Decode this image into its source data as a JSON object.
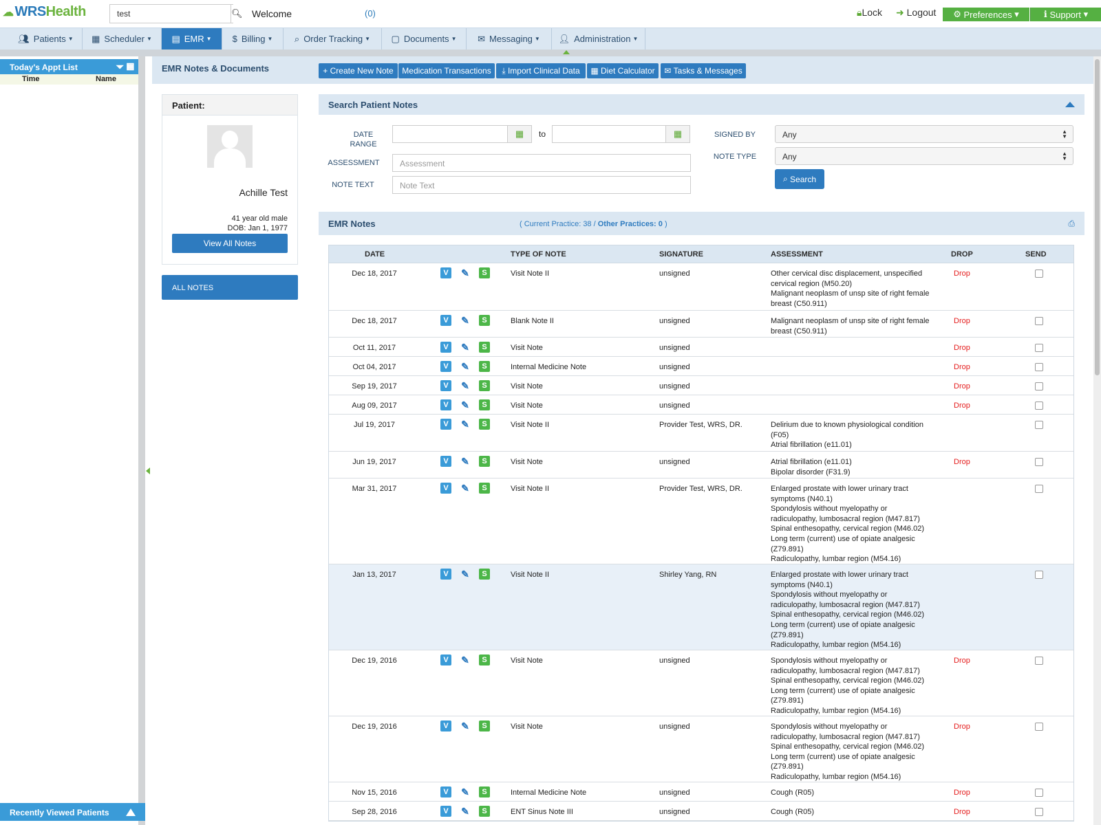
{
  "brand": {
    "logo_wrs": "WRS",
    "logo_health": "Health"
  },
  "search": {
    "value": "test"
  },
  "header": {
    "welcome": "Welcome",
    "message_count": "(0)",
    "lock": "Lock",
    "logout": "Logout",
    "preferences": "Preferences",
    "support": "Support"
  },
  "nav": {
    "patients": "Patients",
    "scheduler": "Scheduler",
    "emr": "EMR",
    "billing": "Billing",
    "order_tracking": "Order Tracking",
    "documents": "Documents",
    "messaging": "Messaging",
    "administration": "Administration"
  },
  "sidebar": {
    "appt_title": "Today's Appt List",
    "col_time": "Time",
    "col_name": "Name",
    "recent": "Recently Viewed Patients"
  },
  "main": {
    "title": "EMR Notes & Documents",
    "buttons": {
      "create": "Create New Note",
      "meds": "Medication Transactions",
      "import": "Import Clinical Data",
      "diet": "Diet Calculator",
      "tasks": "Tasks & Messages"
    }
  },
  "patient": {
    "label": "Patient:",
    "name": "Achille Test",
    "age": "41 year old male",
    "dob": "DOB: Jan 1, 1977",
    "view_all": "View All Notes",
    "all_notes": "ALL NOTES"
  },
  "search_panel": {
    "title": "Search Patient Notes",
    "date_range": "DATE RANGE",
    "to": "to",
    "assessment": "ASSESSMENT",
    "note_text": "NOTE TEXT",
    "assessment_ph": "Assessment",
    "note_text_ph": "Note Text",
    "signed_by": "SIGNED BY",
    "note_type": "NOTE TYPE",
    "signed_by_value": "Any",
    "note_type_value": "Any",
    "search_btn": "Search"
  },
  "notes_panel": {
    "title": "EMR Notes",
    "counts_open": "( ",
    "current_label": "Current Practice: 38",
    "sep": " / ",
    "other_label": "Other Practices: 0",
    "counts_close": " )",
    "columns": {
      "date": "DATE",
      "type": "TYPE OF NOTE",
      "signature": "SIGNATURE",
      "assessment": "ASSESSMENT",
      "drop": "DROP",
      "send": "SEND"
    }
  },
  "rows": [
    {
      "date": "Dec 18, 2017",
      "type": "Visit Note II",
      "sig": "unsigned",
      "assess": "Other cervical disc displacement, unspecified cervical region (M50.20)\nMalignant neoplasm of unsp site of right female breast (C50.911)",
      "drop": "Drop"
    },
    {
      "date": "Dec 18, 2017",
      "type": "Blank Note II",
      "sig": "unsigned",
      "assess": "Malignant neoplasm of unsp site of right female breast (C50.911)",
      "drop": "Drop"
    },
    {
      "date": "Oct 11, 2017",
      "type": "Visit Note",
      "sig": "unsigned",
      "assess": "",
      "drop": "Drop"
    },
    {
      "date": "Oct 04, 2017",
      "type": "Internal Medicine Note",
      "sig": "unsigned",
      "assess": "",
      "drop": "Drop"
    },
    {
      "date": "Sep 19, 2017",
      "type": "Visit Note",
      "sig": "unsigned",
      "assess": "",
      "drop": "Drop"
    },
    {
      "date": "Aug 09, 2017",
      "type": "Visit Note",
      "sig": "unsigned",
      "assess": "",
      "drop": "Drop"
    },
    {
      "date": "Jul 19, 2017",
      "type": "Visit Note II",
      "sig": "Provider Test, WRS, DR.",
      "assess": "Delirium due to known physiological condition (F05)\nAtrial fibrillation (e11.01)",
      "drop": ""
    },
    {
      "date": "Jun 19, 2017",
      "type": "Visit Note",
      "sig": "unsigned",
      "assess": "Atrial fibrillation (e11.01)\nBipolar disorder (F31.9)",
      "drop": "Drop"
    },
    {
      "date": "Mar 31, 2017",
      "type": "Visit Note II",
      "sig": "Provider Test, WRS, DR.",
      "assess": "Enlarged prostate with lower urinary tract symptoms (N40.1)\nSpondylosis without myelopathy or radiculopathy, lumbosacral region (M47.817)\nSpinal enthesopathy, cervical region (M46.02)\nLong term (current) use of opiate analgesic (Z79.891)\nRadiculopathy, lumbar region (M54.16)",
      "drop": ""
    },
    {
      "date": "Jan 13, 2017",
      "type": "Visit Note II",
      "sig": "Shirley Yang, RN",
      "assess": "Enlarged prostate with lower urinary tract symptoms (N40.1)\nSpondylosis without myelopathy or radiculopathy, lumbosacral region (M47.817)\nSpinal enthesopathy, cervical region (M46.02)\nLong term (current) use of opiate analgesic (Z79.891)\nRadiculopathy, lumbar region (M54.16)",
      "drop": ""
    },
    {
      "date": "Dec 19, 2016",
      "type": "Visit Note",
      "sig": "unsigned",
      "assess": "Spondylosis without myelopathy or radiculopathy, lumbosacral region (M47.817)\nSpinal enthesopathy, cervical region (M46.02)\nLong term (current) use of opiate analgesic (Z79.891)\nRadiculopathy, lumbar region (M54.16)",
      "drop": "Drop"
    },
    {
      "date": "Dec 19, 2016",
      "type": "Visit Note",
      "sig": "unsigned",
      "assess": "Spondylosis without myelopathy or radiculopathy, lumbosacral region (M47.817)\nSpinal enthesopathy, cervical region (M46.02)\nLong term (current) use of opiate analgesic (Z79.891)\nRadiculopathy, lumbar region (M54.16)",
      "drop": "Drop"
    },
    {
      "date": "Nov 15, 2016",
      "type": "Internal Medicine Note",
      "sig": "unsigned",
      "assess": "Cough (R05)",
      "drop": "Drop"
    },
    {
      "date": "Sep 28, 2016",
      "type": "ENT Sinus Note III",
      "sig": "unsigned",
      "assess": "Cough (R05)",
      "drop": "Drop"
    }
  ],
  "row_icons": {
    "view": "V",
    "sign": "S"
  },
  "colors": {
    "primary": "#2e7bbf",
    "green": "#55b042",
    "drop_red": "#e41b1b",
    "panel": "#dbe7f2"
  }
}
